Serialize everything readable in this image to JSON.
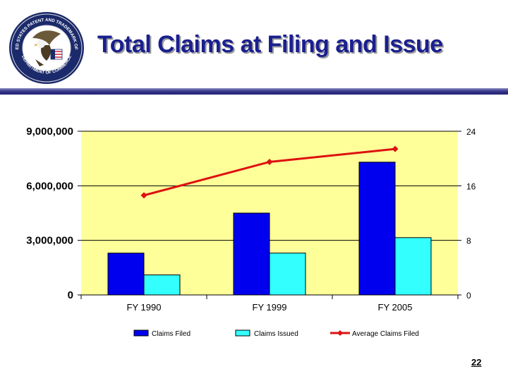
{
  "slide": {
    "title": "Total Claims at Filing and Issue",
    "page_number": "22"
  },
  "logo": {
    "icon": "uspto-seal-icon",
    "text_top": "UNITED STATES PATENT AND TRADEMARK OFFICE",
    "text_bottom": "DEPARTMENT OF COMMERCE"
  },
  "colors": {
    "title": "#1a1f8f",
    "plot_background": "#ffff99",
    "claims_filed": "#0000ee",
    "claims_issued": "#33ffff",
    "average_line": "#dd1111"
  },
  "chart_data": {
    "type": "bar",
    "categories": [
      "FY 1990",
      "FY 1999",
      "FY 2005"
    ],
    "series": [
      {
        "name": "Claims Filed",
        "type": "bar",
        "axis": "left",
        "values": [
          2300000,
          4500000,
          7300000
        ]
      },
      {
        "name": "Claims Issued",
        "type": "bar",
        "axis": "left",
        "values": [
          1100000,
          2300000,
          3150000
        ]
      },
      {
        "name": "Average Claims Filed",
        "type": "line",
        "axis": "right",
        "values": [
          14.6,
          19.5,
          21.4
        ]
      }
    ],
    "y_left": {
      "min": 0,
      "max": 9000000,
      "ticks": [
        0,
        3000000,
        6000000,
        9000000
      ],
      "tick_labels": [
        "0",
        "3,000,000",
        "6,000,000",
        "9,000,000"
      ]
    },
    "y_right": {
      "min": 0,
      "max": 24,
      "ticks": [
        0,
        8,
        16,
        24
      ],
      "tick_labels": [
        "0",
        "8",
        "16",
        "24"
      ]
    },
    "grid": true,
    "legend": "bottom"
  }
}
